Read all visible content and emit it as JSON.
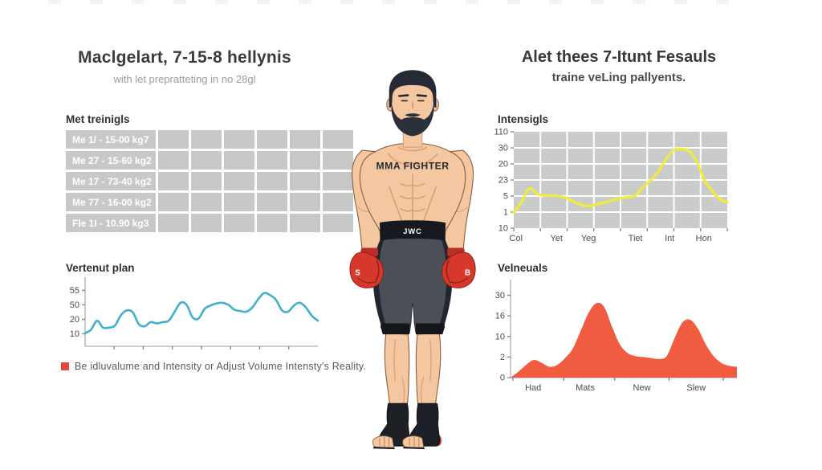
{
  "left": {
    "title": "Maclgelart, 7-15-8 hellynis",
    "subtitle": "with let prepratteting in no 28gl",
    "table_label": "Met treinigls",
    "table": {
      "columns": 7,
      "cell_color": "#c6c9c7",
      "rows": [
        "Me 1/ - 15-00 kg7",
        "Me 27 - 15-60 kg2",
        "Me 17 - 73-40 kg2",
        "Me 77 - 16-00 kg2",
        "Fle 1I - 10.90 kg3"
      ]
    },
    "chart_label": "Vertenut plan",
    "legend": {
      "marker_color": "#e2493b",
      "text": "Be idluvalume and Intensity or Adjust Volume Intensty's Reality."
    }
  },
  "center": {
    "chest_text": "MMA FIGHTER",
    "belt_text": "JWC",
    "left_glove_letter": "S",
    "right_glove_letter": "B"
  },
  "right": {
    "title": "Alet thees 7-Itunt Fesauls",
    "subtitle": "traine veLing pallyents.",
    "chart1_label": "Intensigls",
    "chart2_label": "Velneuals"
  },
  "chart_data": [
    {
      "id": "vertenut",
      "type": "line",
      "title": "Vertenut plan",
      "color": "#3fb0cd",
      "stroke_width": 2.6,
      "axis": true,
      "grid": false,
      "ylim": [
        0,
        100
      ],
      "y_ticks": [
        "55",
        "50",
        "20",
        "10"
      ],
      "tick_span": [
        0.19,
        0.82
      ],
      "x_dash_pos": [
        0.125,
        0.25,
        0.375,
        0.5,
        0.625,
        0.75,
        0.875
      ],
      "values": [
        19,
        24,
        37,
        27,
        27,
        30,
        45,
        52,
        49,
        32,
        29,
        35,
        33,
        35,
        37,
        50,
        63,
        60,
        42,
        40,
        54,
        59,
        62,
        63,
        60,
        53,
        51,
        50,
        56,
        68,
        77,
        74,
        67,
        52,
        50,
        59,
        63,
        56,
        44,
        37
      ]
    },
    {
      "id": "intensigls",
      "type": "line",
      "title": "Intensigls",
      "color": "#f2eb3d",
      "stroke_width": 3.2,
      "axis": false,
      "grid": true,
      "panel_color": "#c9ccca",
      "grid_cols": 8,
      "grid_rows": 6,
      "ylim": [
        0,
        100
      ],
      "y_ticks": [
        "110",
        "30",
        "20",
        "23",
        "5",
        "1",
        "10"
      ],
      "tick_span": [
        0,
        1
      ],
      "x_ticks": [
        "Col",
        "Yet",
        "Yeg",
        "Tiet",
        "Int",
        "Hon"
      ],
      "x_tick_pos": [
        0.01,
        0.2,
        0.35,
        0.57,
        0.73,
        0.89
      ],
      "x_dash_pos": [
        0,
        0.125,
        0.25,
        0.375,
        0.5,
        0.625,
        0.75,
        0.875,
        1
      ],
      "values": [
        16,
        27,
        41,
        36,
        34,
        34,
        33,
        31,
        27,
        24,
        23,
        25,
        27,
        29,
        31,
        32,
        34,
        43,
        50,
        59,
        72,
        81,
        82,
        80,
        69,
        50,
        39,
        30,
        27
      ]
    },
    {
      "id": "velneuals",
      "type": "area",
      "title": "Velneuals",
      "color": "#f15b3f",
      "axis": true,
      "grid": false,
      "ylim": [
        0,
        100
      ],
      "y_ticks": [
        "30",
        "16",
        "10",
        "2",
        "0"
      ],
      "tick_span": [
        0.16,
        1
      ],
      "x_ticks": [
        "Had",
        "Mats",
        "New",
        "Slew"
      ],
      "x_tick_pos": [
        0.1,
        0.33,
        0.58,
        0.82
      ],
      "x_dash_pos": [
        0.01,
        0.235,
        0.46,
        0.7,
        0.94
      ],
      "values": [
        0,
        6,
        13,
        18,
        15,
        11,
        13,
        20,
        30,
        48,
        66,
        76,
        72,
        52,
        34,
        25,
        22,
        21,
        20,
        19,
        22,
        40,
        56,
        59,
        50,
        34,
        22,
        15,
        12,
        11
      ]
    }
  ]
}
